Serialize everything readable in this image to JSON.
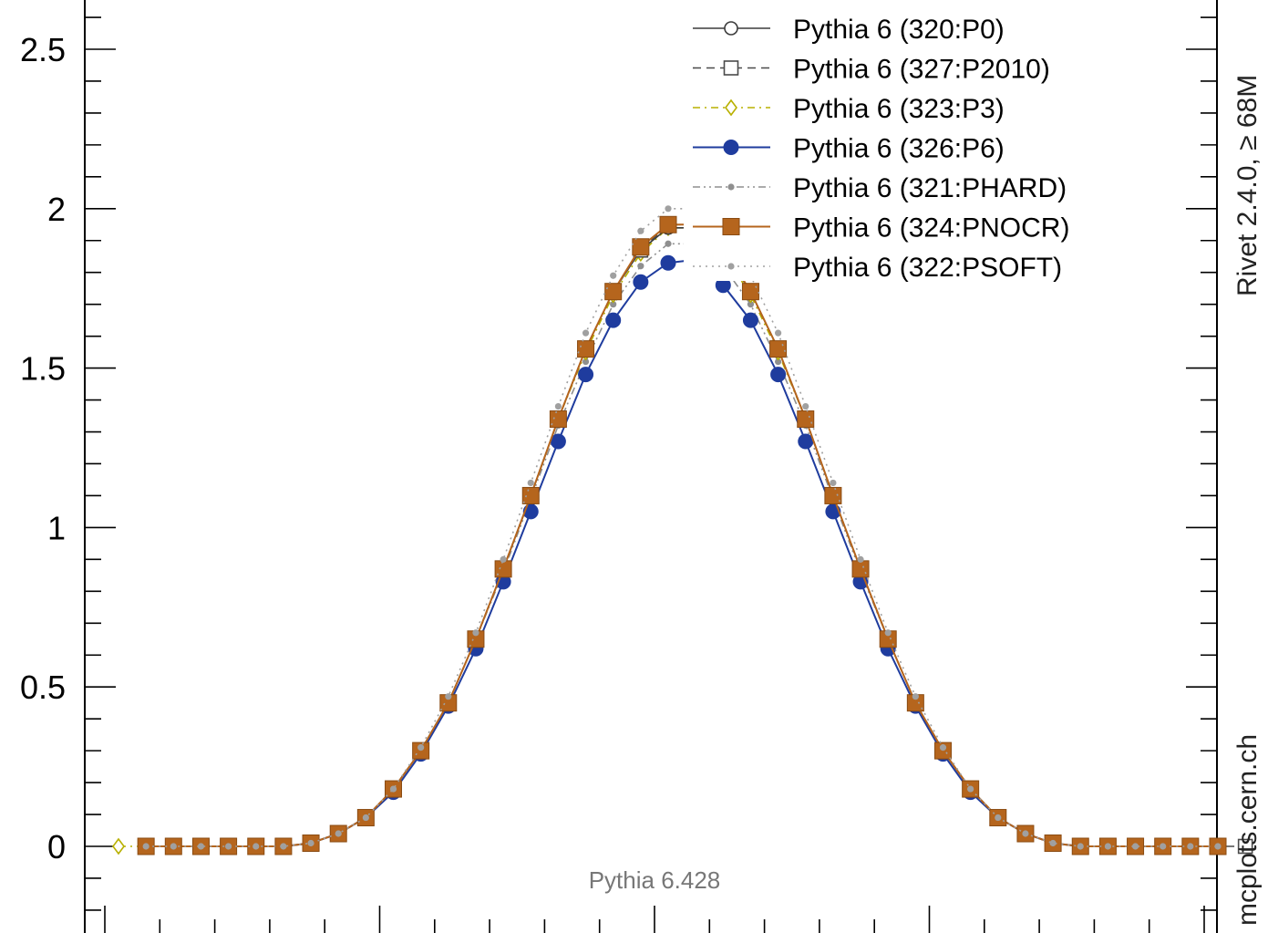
{
  "chart_data": {
    "type": "line",
    "x": [
      -0.975,
      -0.925,
      -0.875,
      -0.825,
      -0.775,
      -0.725,
      -0.675,
      -0.625,
      -0.575,
      -0.525,
      -0.475,
      -0.425,
      -0.375,
      -0.325,
      -0.275,
      -0.225,
      -0.175,
      -0.125,
      -0.075,
      -0.025,
      0.025,
      0.075,
      0.125,
      0.175,
      0.225,
      0.275,
      0.325,
      0.375,
      0.425,
      0.475,
      0.525,
      0.575,
      0.625,
      0.675,
      0.725,
      0.775,
      0.825,
      0.875,
      0.925,
      0.975
    ],
    "xlim": [
      -1.0,
      1.0
    ],
    "ylim": [
      -0.2,
      2.65
    ],
    "yticks": [
      0,
      0.5,
      1,
      1.5,
      2,
      2.5
    ],
    "ytick_labels": [
      "0",
      "0.5",
      "1",
      "1.5",
      "2",
      "2.5"
    ],
    "grid": false,
    "legend_position": "top-right",
    "series": [
      {
        "name": "Pythia 6 (320:P0)",
        "color": "#3b3b3b",
        "dash": "solid",
        "marker": "open-circle",
        "values": [
          0.0,
          0.0,
          0.0,
          0.0,
          0.0,
          0.0,
          0.01,
          0.04,
          0.09,
          0.18,
          0.3,
          0.45,
          0.65,
          0.87,
          1.1,
          1.34,
          1.56,
          1.74,
          1.87,
          1.94,
          1.94,
          1.87,
          1.74,
          1.56,
          1.34,
          1.1,
          0.87,
          0.65,
          0.45,
          0.3,
          0.18,
          0.09,
          0.04,
          0.01,
          0.0,
          0.0,
          0.0,
          0.0,
          0.0,
          0.0
        ]
      },
      {
        "name": "Pythia 6 (327:P2010)",
        "color": "#4a4a4a",
        "dash": "dashed",
        "marker": "open-square",
        "values": [
          0.0,
          0.0,
          0.0,
          0.0,
          0.0,
          0.0,
          0.01,
          0.04,
          0.09,
          0.18,
          0.3,
          0.45,
          0.65,
          0.87,
          1.1,
          1.34,
          1.56,
          1.74,
          1.87,
          1.95,
          1.95,
          1.87,
          1.74,
          1.56,
          1.34,
          1.1,
          0.87,
          0.65,
          0.45,
          0.3,
          0.18,
          0.09,
          0.04,
          0.01,
          0.0,
          0.0,
          0.0,
          0.0,
          0.0,
          0.0
        ]
      },
      {
        "name": "Pythia 6 (323:P3)",
        "color": "#b8b000",
        "dash": "dash-dot",
        "marker": "open-diamond",
        "values": [
          0.0,
          0.0,
          0.0,
          0.0,
          0.0,
          0.0,
          0.01,
          0.04,
          0.09,
          0.18,
          0.3,
          0.45,
          0.65,
          0.87,
          1.1,
          1.34,
          1.55,
          1.73,
          1.86,
          1.94,
          1.94,
          1.86,
          1.73,
          1.55,
          1.34,
          1.1,
          0.87,
          0.65,
          0.45,
          0.3,
          0.18,
          0.09,
          0.04,
          0.01,
          0.0,
          0.0,
          0.0,
          0.0,
          0.0,
          0.0
        ]
      },
      {
        "name": "Pythia 6 (326:P6)",
        "color": "#1f3c9e",
        "dash": "solid",
        "marker": "filled-circle",
        "values": [
          0.0,
          0.0,
          0.0,
          0.0,
          0.0,
          0.0,
          0.01,
          0.04,
          0.09,
          0.17,
          0.29,
          0.44,
          0.62,
          0.83,
          1.05,
          1.27,
          1.48,
          1.65,
          1.77,
          1.83,
          1.84,
          1.76,
          1.65,
          1.48,
          1.27,
          1.05,
          0.83,
          0.62,
          0.44,
          0.29,
          0.17,
          0.09,
          0.04,
          0.01,
          0.0,
          0.0,
          0.0,
          0.0,
          0.0,
          0.0
        ]
      },
      {
        "name": "Pythia 6 (321:PHARD)",
        "color": "#8f8f8f",
        "dash": "dash-dot-dot",
        "marker": "small-dot",
        "values": [
          0.0,
          0.0,
          0.0,
          0.0,
          0.0,
          0.0,
          0.01,
          0.04,
          0.09,
          0.18,
          0.3,
          0.45,
          0.65,
          0.86,
          1.09,
          1.32,
          1.52,
          1.7,
          1.82,
          1.89,
          1.89,
          1.82,
          1.7,
          1.52,
          1.32,
          1.09,
          0.86,
          0.65,
          0.45,
          0.3,
          0.18,
          0.09,
          0.04,
          0.01,
          0.0,
          0.0,
          0.0,
          0.0,
          0.0,
          0.0
        ]
      },
      {
        "name": "Pythia 6 (324:PNOCR)",
        "color": "#b5651d",
        "dash": "solid",
        "marker": "filled-square",
        "values": [
          0.0,
          0.0,
          0.0,
          0.0,
          0.0,
          0.0,
          0.01,
          0.04,
          0.09,
          0.18,
          0.3,
          0.45,
          0.65,
          0.87,
          1.1,
          1.34,
          1.56,
          1.74,
          1.88,
          1.95,
          1.95,
          1.88,
          1.74,
          1.56,
          1.34,
          1.1,
          0.87,
          0.65,
          0.45,
          0.3,
          0.18,
          0.09,
          0.04,
          0.01,
          0.0,
          0.0,
          0.0,
          0.0,
          0.0,
          0.0
        ]
      },
      {
        "name": "Pythia 6 (322:PSOFT)",
        "color": "#a0a0a0",
        "dash": "dotted",
        "marker": "small-dot",
        "values": [
          0.0,
          0.0,
          0.0,
          0.0,
          0.0,
          0.0,
          0.01,
          0.04,
          0.09,
          0.18,
          0.31,
          0.47,
          0.67,
          0.9,
          1.14,
          1.38,
          1.61,
          1.79,
          1.93,
          2.0,
          2.0,
          1.93,
          1.79,
          1.61,
          1.38,
          1.14,
          0.9,
          0.67,
          0.47,
          0.31,
          0.18,
          0.09,
          0.04,
          0.01,
          0.0,
          0.0,
          0.0,
          0.0,
          0.0,
          0.0
        ]
      }
    ]
  },
  "side_text": {
    "rivet": "Rivet 2.4.0,  ≥ 68M",
    "site": "mcplots.cern.ch"
  },
  "generator_label": "Pythia 6.428"
}
